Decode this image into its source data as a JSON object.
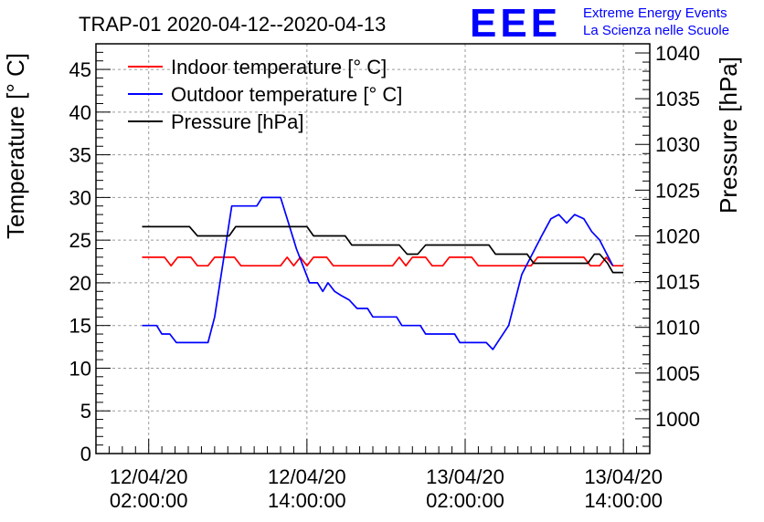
{
  "chart_data": {
    "type": "line",
    "title": "TRAP-01 2020-04-12--2020-04-13",
    "ylabel": "Temperature [° C]",
    "y2label": "Pressure [hPa]",
    "ylim": [
      0,
      48
    ],
    "y2lim": [
      996.2,
      1041
    ],
    "y_ticks": [
      0,
      5,
      10,
      15,
      20,
      25,
      30,
      35,
      40,
      45
    ],
    "y2_ticks": [
      1000,
      1005,
      1010,
      1015,
      1020,
      1025,
      1030,
      1035,
      1040
    ],
    "x_unit": "hours since 2020-04-11 22:00",
    "xlim": [
      0,
      42
    ],
    "x_ticks": [
      {
        "hour": 4,
        "line1": "12/04/20",
        "line2": "02:00:00"
      },
      {
        "hour": 16,
        "line1": "12/04/20",
        "line2": "14:00:00"
      },
      {
        "hour": 28,
        "line1": "13/04/20",
        "line2": "02:00:00"
      },
      {
        "hour": 40,
        "line1": "13/04/20",
        "line2": "14:00:00"
      }
    ],
    "grid": true,
    "legend_position": "top-left",
    "series": [
      {
        "name": "Indoor temperature [° C]",
        "color": "#ff0000",
        "axis": "left",
        "points": [
          [
            3.5,
            23
          ],
          [
            5.2,
            23
          ],
          [
            5.7,
            22
          ],
          [
            6.2,
            23
          ],
          [
            7.2,
            23
          ],
          [
            7.7,
            22
          ],
          [
            8.5,
            22
          ],
          [
            9.0,
            23
          ],
          [
            10.5,
            23
          ],
          [
            11.0,
            22
          ],
          [
            14.0,
            22
          ],
          [
            14.5,
            23
          ],
          [
            15.0,
            22
          ],
          [
            15.5,
            23
          ],
          [
            16.0,
            22
          ],
          [
            16.5,
            23
          ],
          [
            17.5,
            23
          ],
          [
            18.0,
            22
          ],
          [
            22.5,
            22
          ],
          [
            23.0,
            23
          ],
          [
            23.5,
            22
          ],
          [
            24.0,
            23
          ],
          [
            25.0,
            23
          ],
          [
            25.5,
            22
          ],
          [
            26.3,
            22
          ],
          [
            26.8,
            23
          ],
          [
            28.5,
            23
          ],
          [
            29.0,
            22
          ],
          [
            33.0,
            22
          ],
          [
            33.5,
            23
          ],
          [
            37.0,
            23
          ],
          [
            37.5,
            22
          ],
          [
            38.2,
            22
          ],
          [
            38.7,
            23
          ],
          [
            39.2,
            22
          ],
          [
            40.0,
            22
          ]
        ]
      },
      {
        "name": "Outdoor temperature [° C]",
        "color": "#0000ff",
        "axis": "left",
        "points": [
          [
            3.5,
            15
          ],
          [
            4.6,
            15
          ],
          [
            5.0,
            14
          ],
          [
            5.6,
            14
          ],
          [
            6.1,
            13
          ],
          [
            8.5,
            13
          ],
          [
            9.0,
            16
          ],
          [
            9.5,
            21
          ],
          [
            10.0,
            26
          ],
          [
            10.3,
            29
          ],
          [
            12.2,
            29
          ],
          [
            12.6,
            30
          ],
          [
            14.0,
            30
          ],
          [
            14.6,
            27
          ],
          [
            15.2,
            24
          ],
          [
            15.7,
            22
          ],
          [
            16.2,
            20
          ],
          [
            16.8,
            20
          ],
          [
            17.2,
            19
          ],
          [
            17.6,
            20
          ],
          [
            18.1,
            19
          ],
          [
            18.6,
            18.5
          ],
          [
            19.2,
            18
          ],
          [
            19.8,
            17
          ],
          [
            20.6,
            17
          ],
          [
            21.0,
            16
          ],
          [
            22.8,
            16
          ],
          [
            23.2,
            15
          ],
          [
            24.6,
            15
          ],
          [
            25.0,
            14
          ],
          [
            27.2,
            14
          ],
          [
            27.6,
            13
          ],
          [
            29.6,
            13
          ],
          [
            30.1,
            12.2
          ],
          [
            31.3,
            15
          ],
          [
            31.8,
            18
          ],
          [
            32.3,
            21
          ],
          [
            32.8,
            22.5
          ],
          [
            33.3,
            24
          ],
          [
            33.8,
            25.5
          ],
          [
            34.5,
            27.5
          ],
          [
            35.1,
            28
          ],
          [
            35.7,
            27
          ],
          [
            36.3,
            28
          ],
          [
            37.0,
            27.5
          ],
          [
            37.6,
            26
          ],
          [
            38.2,
            25
          ],
          [
            38.7,
            23.5
          ],
          [
            39.2,
            22
          ]
        ]
      },
      {
        "name": "Pressure [hPa]",
        "color": "#000000",
        "axis": "right",
        "points": [
          [
            3.5,
            1021
          ],
          [
            7.1,
            1021
          ],
          [
            7.7,
            1020
          ],
          [
            10.1,
            1020
          ],
          [
            10.6,
            1021
          ],
          [
            16.0,
            1021
          ],
          [
            16.5,
            1020
          ],
          [
            18.9,
            1020
          ],
          [
            19.4,
            1019
          ],
          [
            23.0,
            1019
          ],
          [
            23.6,
            1018
          ],
          [
            24.4,
            1018
          ],
          [
            25.0,
            1019
          ],
          [
            29.8,
            1019
          ],
          [
            30.3,
            1018
          ],
          [
            32.7,
            1018
          ],
          [
            33.2,
            1017
          ],
          [
            37.3,
            1017
          ],
          [
            37.8,
            1018
          ],
          [
            38.2,
            1018
          ],
          [
            38.8,
            1017
          ],
          [
            39.2,
            1016
          ],
          [
            40.0,
            1016
          ]
        ]
      }
    ]
  },
  "logo": {
    "mark": "EEE",
    "line1": "Extreme Energy Events",
    "line2": "La Scienza nelle Scuole",
    "color": "#0000ff"
  }
}
